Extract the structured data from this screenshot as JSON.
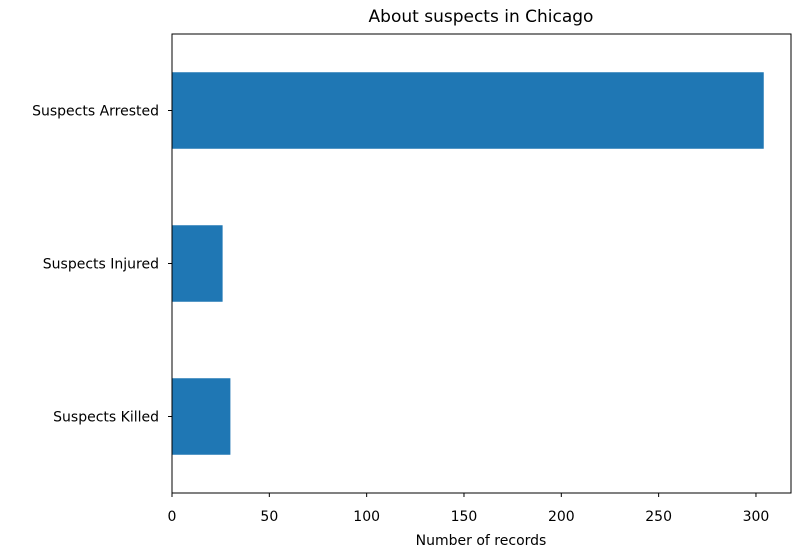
{
  "chart_data": {
    "type": "bar",
    "orientation": "horizontal",
    "title": "About suspects in Chicago",
    "xlabel": "Number of records",
    "ylabel": "",
    "categories": [
      "Suspects Arrested",
      "Suspects Injured",
      "Suspects Killed"
    ],
    "values": [
      304,
      26,
      30
    ],
    "xlim": [
      0,
      318
    ],
    "xticks": [
      0,
      50,
      100,
      150,
      200,
      250,
      300
    ],
    "grid": false,
    "legend": "none",
    "bar_color": "#1f77b4"
  }
}
